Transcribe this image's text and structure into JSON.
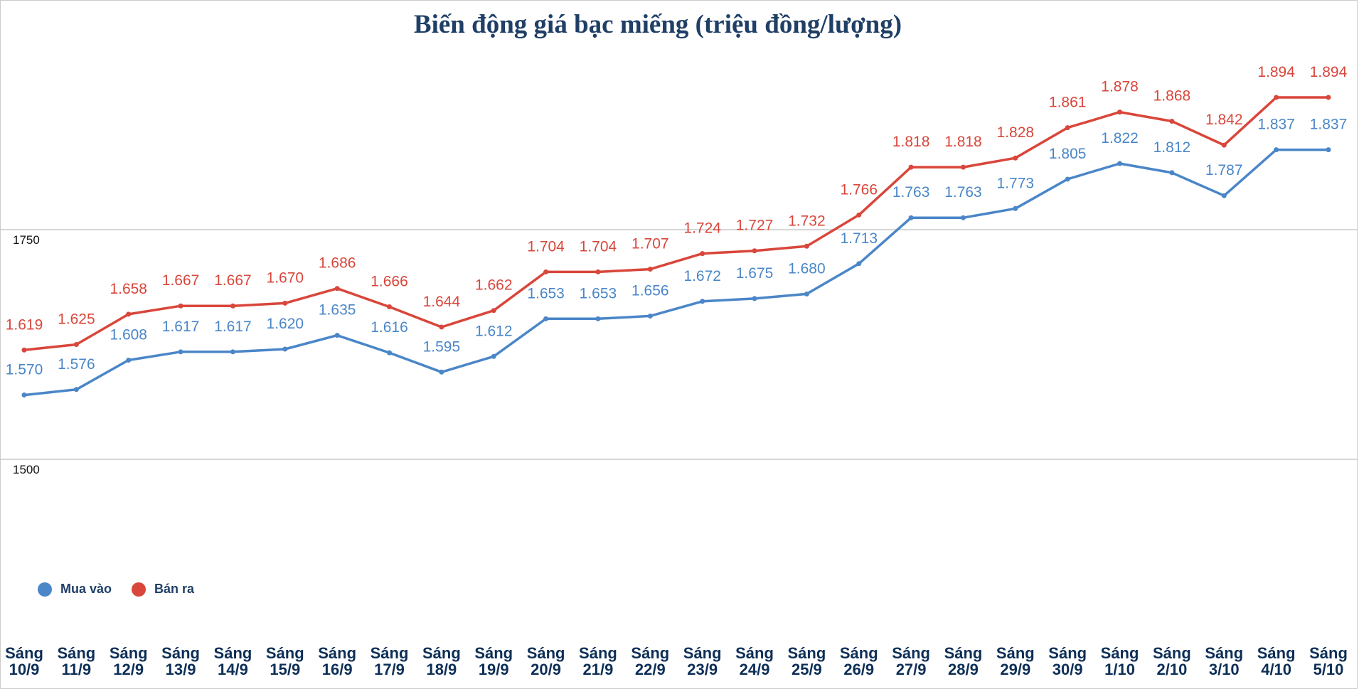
{
  "chart_data": {
    "type": "line",
    "title": "Biến động giá bạc miếng (triệu đồng/lượng)",
    "categories": [
      "Sáng 10/9",
      "Sáng 11/9",
      "Sáng 12/9",
      "Sáng 13/9",
      "Sáng 14/9",
      "Sáng 15/9",
      "Sáng 16/9",
      "Sáng 17/9",
      "Sáng 18/9",
      "Sáng 19/9",
      "Sáng 20/9",
      "Sáng 21/9",
      "Sáng 22/9",
      "Sáng 23/9",
      "Sáng 24/9",
      "Sáng 25/9",
      "Sáng 26/9",
      "Sáng 27/9",
      "Sáng 28/9",
      "Sáng 29/9",
      "Sáng 30/9",
      "Sáng 1/10",
      "Sáng 2/10",
      "Sáng 3/10",
      "Sáng 4/10",
      "Sáng 5/10"
    ],
    "series": [
      {
        "name": "Mua vào",
        "color": "#4a86c8",
        "values": [
          1570,
          1576,
          1608,
          1617,
          1617,
          1620,
          1635,
          1616,
          1595,
          1612,
          1653,
          1653,
          1656,
          1672,
          1675,
          1680,
          1713,
          1763,
          1763,
          1773,
          1805,
          1822,
          1812,
          1787,
          1837,
          1837
        ],
        "value_labels": [
          "1.570",
          "1.576",
          "1.608",
          "1.617",
          "1.617",
          "1.620",
          "1.635",
          "1.616",
          "1.595",
          "1.612",
          "1.653",
          "1.653",
          "1.656",
          "1.672",
          "1.675",
          "1.680",
          "1.713",
          "1.763",
          "1.763",
          "1.773",
          "1.805",
          "1.822",
          "1.812",
          "1.787",
          "1.837",
          "1.837"
        ]
      },
      {
        "name": "Bán ra",
        "color": "#d9463b",
        "values": [
          1619,
          1625,
          1658,
          1667,
          1667,
          1670,
          1686,
          1666,
          1644,
          1662,
          1704,
          1704,
          1707,
          1724,
          1727,
          1732,
          1766,
          1818,
          1818,
          1828,
          1861,
          1878,
          1868,
          1842,
          1894,
          1894
        ],
        "value_labels": [
          "1.619",
          "1.625",
          "1.658",
          "1.667",
          "1.667",
          "1.670",
          "1.686",
          "1.666",
          "1.644",
          "1.662",
          "1.704",
          "1.704",
          "1.707",
          "1.724",
          "1.727",
          "1.732",
          "1.766",
          "1.818",
          "1.818",
          "1.828",
          "1.861",
          "1.878",
          "1.868",
          "1.842",
          "1.894",
          "1.894"
        ]
      }
    ],
    "ylim": [
      1250,
      2000
    ],
    "yticks": [
      1500,
      1750
    ],
    "grid": true
  }
}
